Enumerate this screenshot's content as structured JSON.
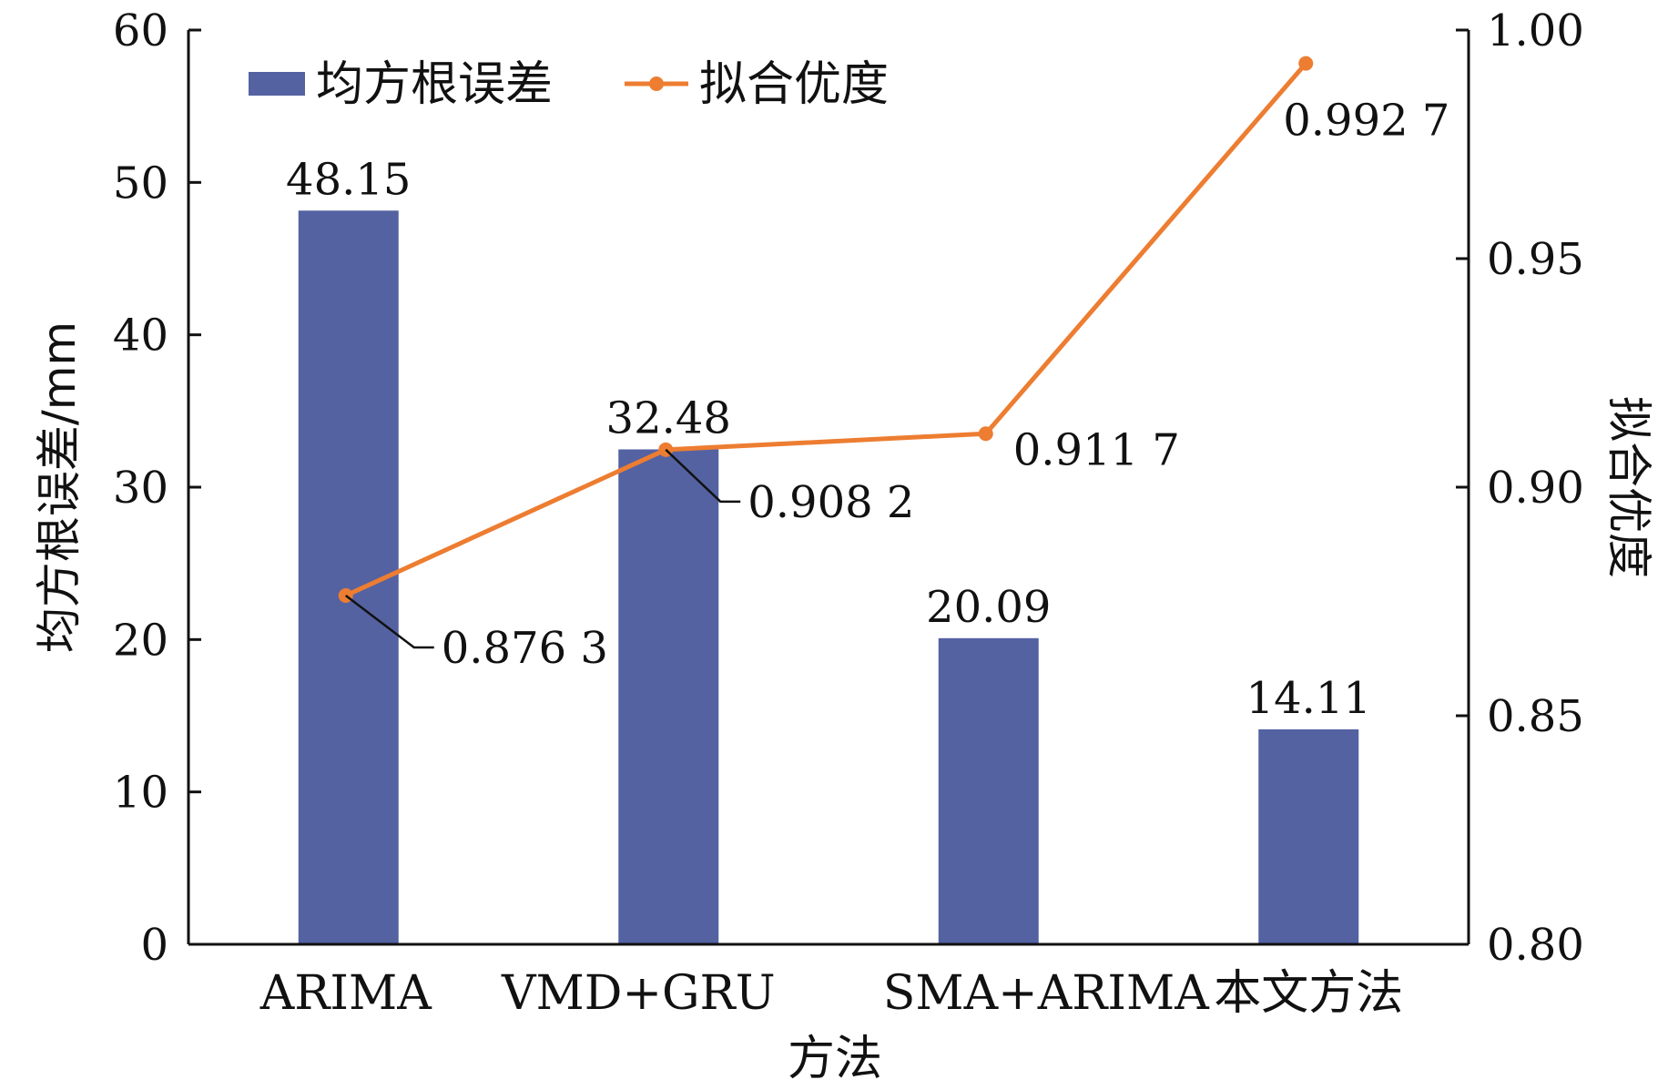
{
  "chart_data": {
    "type": "bar",
    "categories": [
      "ARIMA",
      "VMD+GRU",
      "SMA+ARIMA",
      "本文方法"
    ],
    "xlabel": "方法",
    "ylabel": "均方根误差/mm",
    "y2label": "拟合优度",
    "ylim": [
      0,
      60
    ],
    "y2lim": [
      0.8,
      1.0
    ],
    "yticks": [
      0,
      10,
      20,
      30,
      40,
      50,
      60
    ],
    "y2ticks": [
      "0.80",
      "0.85",
      "0.90",
      "0.95",
      "1.00"
    ],
    "legend_position": "top-left",
    "grid": false,
    "series": [
      {
        "name": "均方根误差",
        "type": "bar",
        "axis": "left",
        "color": "#5462a2",
        "values": [
          48.15,
          32.48,
          20.09,
          14.11
        ],
        "labels": [
          "48.15",
          "32.48",
          "20.09",
          "14.11"
        ]
      },
      {
        "name": "拟合优度",
        "type": "line",
        "axis": "right",
        "color": "#ed7d31",
        "values": [
          0.8763,
          0.9082,
          0.9117,
          0.9927
        ],
        "labels": [
          "0.876 3",
          "0.908 2",
          "0.911 7",
          "0.992 7"
        ]
      }
    ]
  }
}
